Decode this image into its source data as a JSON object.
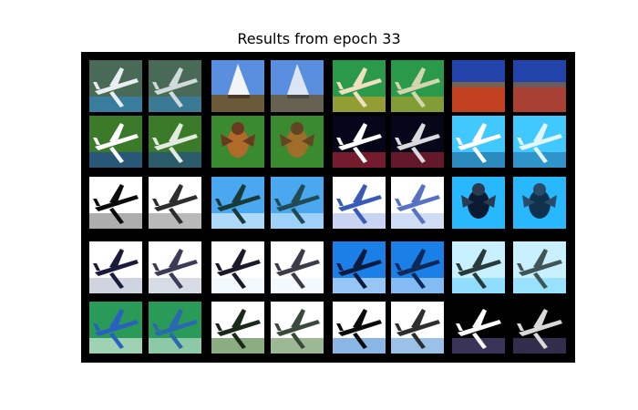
{
  "title": "Results from epoch 33",
  "panel": {
    "rows": 5,
    "pairs_per_row": 4,
    "background": "#000000"
  },
  "tiles": [
    {
      "subject": "airplane",
      "colors": [
        "#4a6a58",
        "#e8eef2",
        "#2a8dd8"
      ]
    },
    {
      "subject": "sailboat",
      "colors": [
        "#5a8fe0",
        "#f2f4f8",
        "#6a5a3a"
      ]
    },
    {
      "subject": "airplane",
      "colors": [
        "#2a9a4a",
        "#f0e0c0",
        "#e8a020"
      ]
    },
    {
      "subject": "landscape",
      "colors": [
        "#2244aa",
        "#c04020",
        "#7a6050"
      ]
    },
    {
      "subject": "airplane",
      "colors": [
        "#3a7a28",
        "#ffffff",
        "#1a3ab8"
      ]
    },
    {
      "subject": "bird",
      "colors": [
        "#3a8a30",
        "#b06a2a",
        "#6a3a20"
      ]
    },
    {
      "subject": "airplane",
      "colors": [
        "#06061a",
        "#ffffff",
        "#d03040"
      ]
    },
    {
      "subject": "airplane",
      "colors": [
        "#40c8ff",
        "#ffffff",
        "#1a5a8a"
      ]
    },
    {
      "subject": "airplane",
      "colors": [
        "#ffffff",
        "#0a0a0a",
        "#6a6a6a"
      ]
    },
    {
      "subject": "airplane",
      "colors": [
        "#4aa8f0",
        "#1a3a3a",
        "#ffffff"
      ]
    },
    {
      "subject": "airplane",
      "colors": [
        "#ffffff",
        "#3a5ab8",
        "#9ab0e8"
      ]
    },
    {
      "subject": "bird",
      "colors": [
        "#28b8ff",
        "#0a1a30",
        "#2a3a50"
      ]
    },
    {
      "subject": "airplane",
      "colors": [
        "#ffffff",
        "#1a1a3a",
        "#aab0c8"
      ]
    },
    {
      "subject": "airplane",
      "colors": [
        "#ffffff",
        "#1a1a2a",
        "#e8f4ff"
      ]
    },
    {
      "subject": "airplane",
      "colors": [
        "#1a80e8",
        "#0a1a40",
        "#ffffff"
      ]
    },
    {
      "subject": "airplane",
      "colors": [
        "#c8f0ff",
        "#2a3a3a",
        "#60d0ff"
      ]
    },
    {
      "subject": "airplane",
      "colors": [
        "#2a9a58",
        "#2a60c0",
        "#ffffff"
      ]
    },
    {
      "subject": "airplane",
      "colors": [
        "#ffffff",
        "#1a2a1a",
        "#2a6a1a"
      ]
    },
    {
      "subject": "airplane",
      "colors": [
        "#ffffff",
        "#0a0a0a",
        "#2a7ad0"
      ]
    },
    {
      "subject": "airplane",
      "colors": [
        "#000000",
        "#ffffff",
        "#6a60a0"
      ]
    }
  ]
}
